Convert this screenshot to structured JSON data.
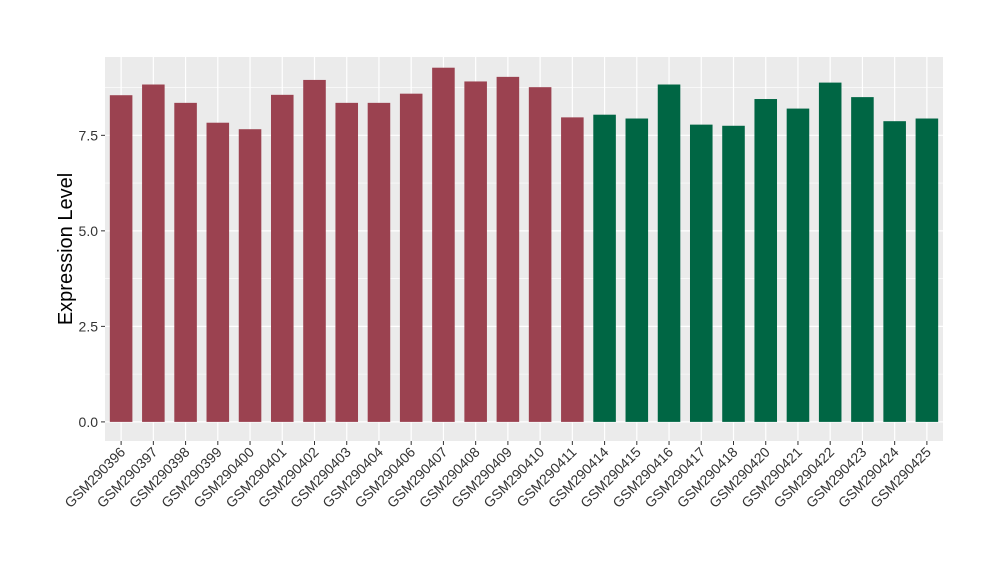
{
  "chart_data": {
    "type": "bar",
    "ylabel": "Expression Level",
    "xlabel": "",
    "ylim": [
      -0.5,
      9.55
    ],
    "yticks": [
      0.0,
      2.5,
      5.0,
      7.5
    ],
    "ytick_labels": [
      "0.0",
      "2.5",
      "5.0",
      "7.5"
    ],
    "grid": true,
    "panel_background": "#EBEBEB",
    "categories": [
      "GSM290396",
      "GSM290397",
      "GSM290398",
      "GSM290399",
      "GSM290400",
      "GSM290401",
      "GSM290402",
      "GSM290403",
      "GSM290404",
      "GSM290406",
      "GSM290407",
      "GSM290408",
      "GSM290409",
      "GSM290410",
      "GSM290411",
      "GSM290414",
      "GSM290415",
      "GSM290416",
      "GSM290417",
      "GSM290418",
      "GSM290420",
      "GSM290421",
      "GSM290422",
      "GSM290423",
      "GSM290424",
      "GSM290425"
    ],
    "values": [
      8.55,
      8.83,
      8.35,
      7.83,
      7.66,
      8.56,
      8.95,
      8.35,
      8.35,
      8.59,
      9.27,
      8.91,
      9.03,
      8.76,
      7.97,
      8.04,
      7.94,
      8.83,
      7.78,
      7.75,
      8.45,
      8.2,
      8.88,
      8.5,
      7.87,
      7.94
    ],
    "groups": [
      "A",
      "A",
      "A",
      "A",
      "A",
      "A",
      "A",
      "A",
      "A",
      "A",
      "A",
      "A",
      "A",
      "A",
      "A",
      "B",
      "B",
      "B",
      "B",
      "B",
      "B",
      "B",
      "B",
      "B",
      "B",
      "B"
    ],
    "group_colors": {
      "A": "#9B4250",
      "B": "#006644"
    }
  }
}
